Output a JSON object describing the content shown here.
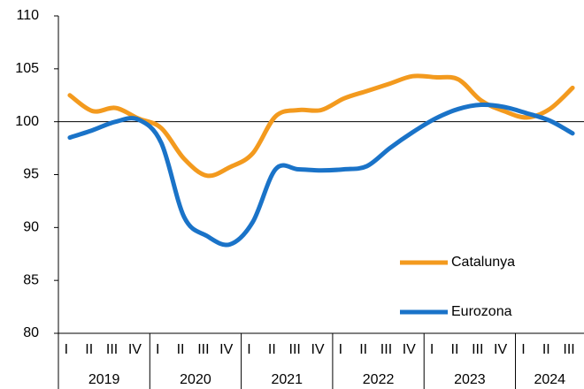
{
  "chart_data": {
    "type": "line",
    "categories": [
      "I",
      "II",
      "III",
      "IV",
      "I",
      "II",
      "III",
      "IV",
      "I",
      "II",
      "III",
      "IV",
      "I",
      "II",
      "III",
      "IV",
      "I",
      "II",
      "III",
      "IV",
      "I",
      "II",
      "III"
    ],
    "year_labels": [
      "2019",
      "2020",
      "2021",
      "2022",
      "2023",
      "2024"
    ],
    "series": [
      {
        "name": "Catalunya",
        "color": "#f39a1e",
        "values": [
          102.5,
          101.0,
          101.3,
          100.3,
          99.4,
          96.5,
          94.9,
          95.7,
          97.0,
          100.5,
          101.1,
          101.1,
          102.2,
          102.9,
          103.6,
          104.3,
          104.2,
          104.0,
          102.0,
          101.0,
          100.4,
          101.2,
          103.2
        ]
      },
      {
        "name": "Eurozona",
        "color": "#1a73c8",
        "values": [
          98.5,
          99.2,
          100.0,
          100.2,
          98.0,
          91.0,
          89.2,
          88.4,
          90.5,
          95.5,
          95.5,
          95.4,
          95.5,
          95.8,
          97.5,
          99.0,
          100.3,
          101.2,
          101.6,
          101.4,
          100.8,
          100.1,
          98.9
        ]
      }
    ],
    "ylim": [
      80,
      110
    ],
    "yticks": [
      80,
      85,
      90,
      95,
      100,
      105,
      110
    ],
    "reference_line": 100,
    "legend": "lower right"
  }
}
